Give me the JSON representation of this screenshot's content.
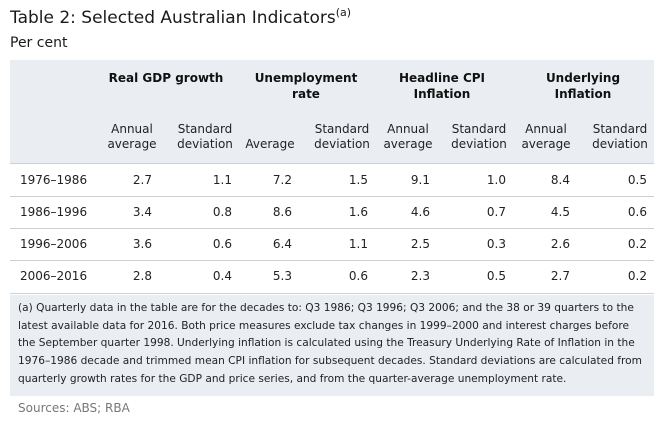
{
  "title": "Table 2: Selected Australian Indicators",
  "title_note": "(a)",
  "subtitle": "Per cent",
  "groups": [
    {
      "line1": "Real GDP growth",
      "line2": ""
    },
    {
      "line1": "Unemployment",
      "line2": "rate"
    },
    {
      "line1": "Headline CPI",
      "line2": "Inflation"
    },
    {
      "line1": "Underlying",
      "line2": "Inflation"
    }
  ],
  "subheaders": [
    {
      "line1": "Annual",
      "line2": "average"
    },
    {
      "line1": "Standard",
      "line2": "deviation"
    },
    {
      "line1": "",
      "line2": "Average"
    },
    {
      "line1": "Standard",
      "line2": "deviation"
    },
    {
      "line1": "Annual",
      "line2": "average"
    },
    {
      "line1": "Standard",
      "line2": "deviation"
    },
    {
      "line1": "Annual",
      "line2": "average"
    },
    {
      "line1": "Standard",
      "line2": "deviation"
    }
  ],
  "rows": [
    {
      "period": "1976–1986",
      "values": [
        "2.7",
        "1.1",
        "7.2",
        "1.5",
        "9.1",
        "1.0",
        "8.4",
        "0.5"
      ]
    },
    {
      "period": "1986–1996",
      "values": [
        "3.4",
        "0.8",
        "8.6",
        "1.6",
        "4.6",
        "0.7",
        "4.5",
        "0.6"
      ]
    },
    {
      "period": "1996–2006",
      "values": [
        "3.6",
        "0.6",
        "6.4",
        "1.1",
        "2.5",
        "0.3",
        "2.6",
        "0.2"
      ]
    },
    {
      "period": "2006–2016",
      "values": [
        "2.8",
        "0.4",
        "5.3",
        "0.6",
        "2.3",
        "0.5",
        "2.7",
        "0.2"
      ]
    }
  ],
  "footnote": "(a) Quarterly data in the table are for the decades to: Q3 1986; Q3 1996; Q3 2006; and the 38 or 39 quarters to the latest available data for 2016. Both price measures exclude tax changes in 1999–2000 and interest charges before the September quarter 1998. Underlying inflation is calculated using the Treasury Underlying Rate of Inflation in the 1976–1986 decade and trimmed mean CPI inflation for subsequent decades. Standard deviations are calculated from quarterly growth rates for the GDP and price series, and from the quarter-average unemployment rate.",
  "sources": "Sources: ABS; RBA"
}
